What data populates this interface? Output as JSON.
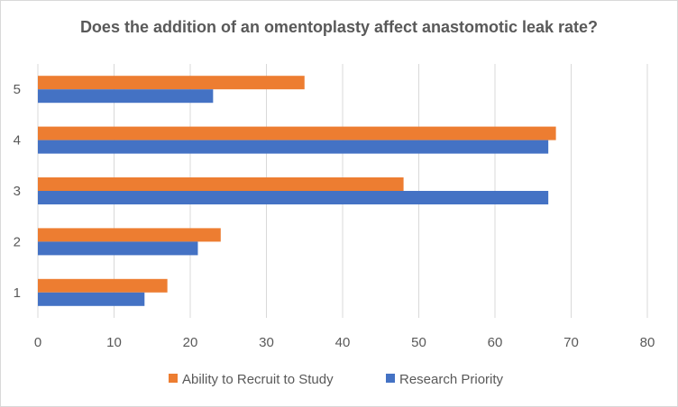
{
  "chart_data": {
    "type": "bar",
    "orientation": "horizontal",
    "title": "Does the addition of an omentoplasty affect anastomotic leak rate?",
    "xlabel": "",
    "ylabel": "",
    "xlim": [
      0,
      80
    ],
    "x_ticks": [
      "0",
      "10",
      "20",
      "30",
      "40",
      "50",
      "60",
      "70",
      "80"
    ],
    "categories": [
      "1",
      "2",
      "3",
      "4",
      "5"
    ],
    "series": [
      {
        "name": "Ability to Recruit to Study",
        "color": "#ED7D31",
        "values": [
          17,
          24,
          48,
          68,
          35
        ]
      },
      {
        "name": "Research Priority",
        "color": "#4472C4",
        "values": [
          14,
          21,
          67,
          67,
          23
        ]
      }
    ],
    "grid": "vertical",
    "legend": "bottom",
    "gridline_color": "#d9d9d9"
  }
}
